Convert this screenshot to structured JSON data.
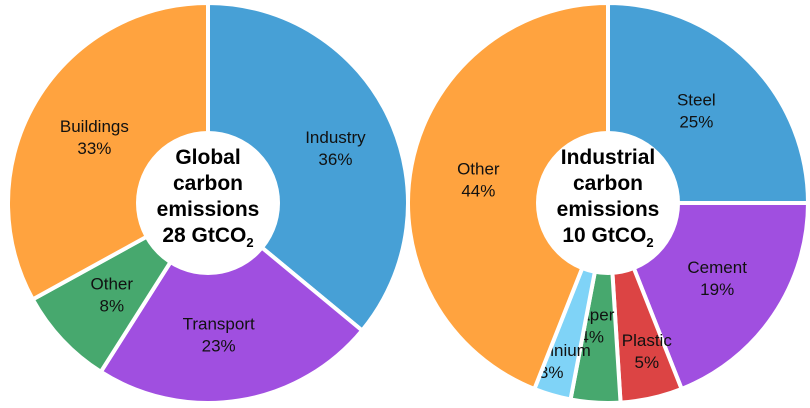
{
  "chart_data": [
    {
      "type": "pie",
      "center_title": [
        "Global",
        "carbon",
        "emissions"
      ],
      "center_value": "28 GtCO",
      "center_value_sub": "2",
      "slices": [
        {
          "label": "Industry",
          "pct_label": "36%",
          "value": 36,
          "color": "#47a0d6"
        },
        {
          "label": "Transport",
          "pct_label": "23%",
          "value": 23,
          "color": "#a04fe0"
        },
        {
          "label": "Other",
          "pct_label": "8%",
          "value": 8,
          "color": "#47a86e"
        },
        {
          "label": "Buildings",
          "pct_label": "33%",
          "value": 33,
          "color": "#ffa33f"
        }
      ]
    },
    {
      "type": "pie",
      "center_title": [
        "Industrial",
        "carbon",
        "emissions"
      ],
      "center_value": "10 GtCO",
      "center_value_sub": "2",
      "slices": [
        {
          "label": "Steel",
          "pct_label": "25%",
          "value": 25,
          "color": "#47a0d6"
        },
        {
          "label": "Cement",
          "pct_label": "19%",
          "value": 19,
          "color": "#a04fe0"
        },
        {
          "label": "Plastic",
          "pct_label": "5%",
          "value": 5,
          "color": "#dc4444"
        },
        {
          "label": "Paper",
          "pct_label": "4%",
          "value": 4,
          "color": "#47a86e"
        },
        {
          "label": "Aluminium",
          "pct_label": "3%",
          "value": 3,
          "color": "#7fd3f7"
        },
        {
          "label": "Other",
          "pct_label": "44%",
          "value": 44,
          "color": "#ffa33f"
        }
      ]
    }
  ]
}
